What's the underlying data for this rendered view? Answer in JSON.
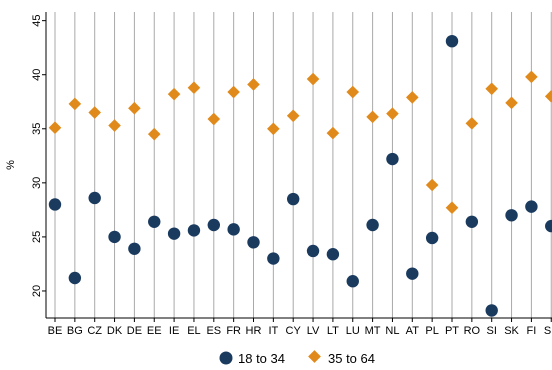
{
  "chart_data": {
    "type": "dot-plot",
    "ylabel": "%",
    "ylim": [
      17.5,
      45.8
    ],
    "yticks": [
      20,
      25,
      30,
      35,
      40,
      45
    ],
    "categories": [
      "BE",
      "BG",
      "CZ",
      "DK",
      "DE",
      "EE",
      "IE",
      "EL",
      "ES",
      "FR",
      "HR",
      "IT",
      "CY",
      "LV",
      "LT",
      "LU",
      "MT",
      "NL",
      "AT",
      "PL",
      "PT",
      "RO",
      "SI",
      "SK",
      "FI",
      "SE"
    ],
    "series": [
      {
        "name": "18 to 34",
        "marker": "circle",
        "color": "#1a3a5e",
        "values": [
          28.0,
          21.2,
          28.6,
          25.0,
          23.9,
          26.4,
          25.3,
          25.6,
          26.1,
          25.7,
          24.5,
          23.0,
          28.5,
          23.7,
          23.4,
          20.9,
          26.1,
          32.2,
          21.6,
          24.9,
          43.1,
          26.4,
          18.2,
          27.0,
          27.8,
          26.0
        ]
      },
      {
        "name": "35 to 64",
        "marker": "diamond",
        "color": "#e08a1c",
        "values": [
          35.1,
          37.3,
          36.5,
          35.3,
          36.9,
          34.5,
          38.2,
          38.8,
          35.9,
          38.4,
          39.1,
          35.0,
          36.2,
          39.6,
          34.6,
          38.4,
          36.1,
          36.4,
          37.9,
          29.8,
          27.7,
          35.5,
          38.7,
          37.4,
          39.8,
          38.0
        ]
      }
    ],
    "grid": "vertical",
    "legend": "bottom-center"
  }
}
